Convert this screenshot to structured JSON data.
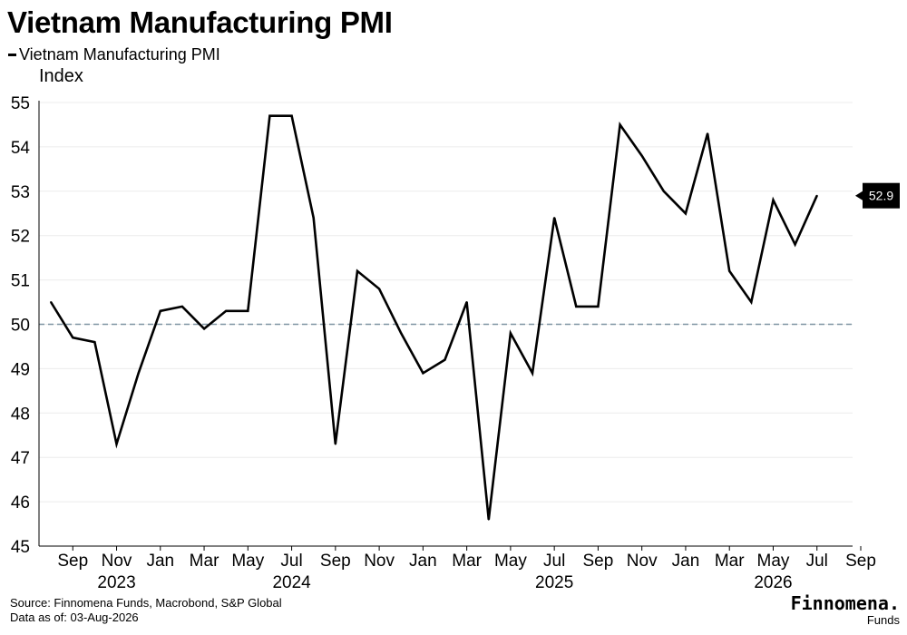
{
  "title": "Vietnam Manufacturing PMI",
  "legend": {
    "label": "Vietnam Manufacturing PMI"
  },
  "unit": "Index",
  "chart_data": {
    "type": "line",
    "title": "Vietnam Manufacturing PMI",
    "ylabel": "Index",
    "ylim": [
      45,
      55
    ],
    "yticks": [
      45,
      46,
      47,
      48,
      49,
      50,
      51,
      52,
      53,
      54,
      55
    ],
    "reference_line": 50,
    "grid": true,
    "x_tick_labels": [
      {
        "date": "2023-09",
        "label": "Sep"
      },
      {
        "date": "2023-11",
        "label": "Nov"
      },
      {
        "date": "2024-01",
        "label": "Jan"
      },
      {
        "date": "2024-03",
        "label": "Mar"
      },
      {
        "date": "2024-05",
        "label": "May"
      },
      {
        "date": "2024-07",
        "label": "Jul"
      },
      {
        "date": "2024-09",
        "label": "Sep"
      },
      {
        "date": "2024-11",
        "label": "Nov"
      },
      {
        "date": "2025-01",
        "label": "Jan"
      },
      {
        "date": "2025-03",
        "label": "Mar"
      },
      {
        "date": "2025-05",
        "label": "May"
      },
      {
        "date": "2025-07",
        "label": "Jul"
      },
      {
        "date": "2025-09",
        "label": "Sep"
      },
      {
        "date": "2025-11",
        "label": "Nov"
      },
      {
        "date": "2026-01",
        "label": "Jan"
      },
      {
        "date": "2026-03",
        "label": "Mar"
      },
      {
        "date": "2026-05",
        "label": "May"
      },
      {
        "date": "2026-07",
        "label": "Jul"
      },
      {
        "date": "2026-09",
        "label": "Sep"
      }
    ],
    "year_labels": [
      {
        "date": "2023-11",
        "label": "2023"
      },
      {
        "date": "2024-07",
        "label": "2024"
      },
      {
        "date": "2025-07",
        "label": "2025"
      },
      {
        "date": "2026-05",
        "label": "2026"
      }
    ],
    "series": [
      {
        "name": "Vietnam Manufacturing PMI",
        "color": "#000000",
        "x": [
          "2023-08",
          "2023-09",
          "2023-10",
          "2023-11",
          "2023-12",
          "2024-01",
          "2024-02",
          "2024-03",
          "2024-04",
          "2024-05",
          "2024-06",
          "2024-07",
          "2024-08",
          "2024-09",
          "2024-10",
          "2024-11",
          "2024-12",
          "2025-01",
          "2025-02",
          "2025-03",
          "2025-04",
          "2025-05",
          "2025-06",
          "2025-07",
          "2025-08",
          "2025-09",
          "2025-10",
          "2025-11",
          "2025-12",
          "2026-01",
          "2026-02",
          "2026-03",
          "2026-04",
          "2026-05",
          "2026-06",
          "2026-07"
        ],
        "values": [
          50.5,
          49.7,
          49.6,
          47.3,
          48.9,
          50.3,
          50.4,
          49.9,
          50.3,
          50.3,
          54.7,
          54.7,
          52.4,
          47.3,
          51.2,
          50.8,
          49.8,
          48.9,
          49.2,
          50.5,
          45.6,
          49.8,
          48.9,
          52.4,
          50.4,
          50.4,
          54.5,
          53.8,
          53.0,
          52.5,
          54.3,
          51.2,
          50.5,
          52.8,
          51.8,
          52.9
        ]
      }
    ],
    "last_value_label": "52.9"
  },
  "footer": {
    "source": "Source: Finnomena Funds, Macrobond, S&P Global",
    "data_as_of": "Data as of: 03-Aug-2026"
  },
  "brand": {
    "name": "Finnomena.",
    "sub": "Funds"
  }
}
